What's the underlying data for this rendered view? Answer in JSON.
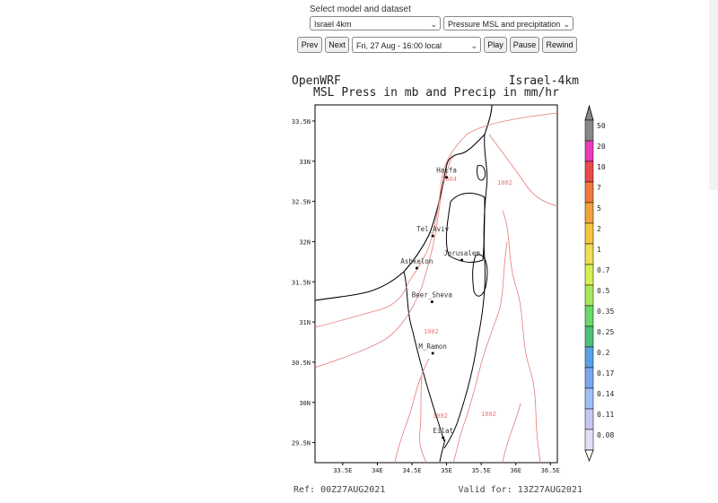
{
  "controls": {
    "select_label": "Select model and dataset",
    "model": "Israel 4km",
    "dataset": "Pressure MSL and precipitation",
    "time": "Fri, 27 Aug - 16:00 local",
    "prev_label": "Prev",
    "next_label": "Next",
    "play_label": "Play",
    "pause_label": "Pause",
    "rewind_label": "Rewind"
  },
  "chart": {
    "brand": "OpenWRF",
    "domain": "Israel-4km",
    "title": "MSL Press in mb and Precip in mm/hr",
    "ref": "Ref: 00Z27AUG2021",
    "valid": "Valid for: 13Z27AUG2021",
    "lat_ticks": [
      "33.5N",
      "33N",
      "32.5N",
      "32N",
      "31.5N",
      "31N",
      "30.5N",
      "30N",
      "29.5N"
    ],
    "lon_ticks": [
      "33.5E",
      "34E",
      "34.5E",
      "35E",
      "35.5E",
      "36E",
      "36.5E"
    ],
    "cities": [
      {
        "name": "Haifa",
        "lon": 35.0,
        "lat": 32.8
      },
      {
        "name": "Tel_Aviv",
        "lon": 34.8,
        "lat": 32.07
      },
      {
        "name": "Jerusalem",
        "lon": 35.22,
        "lat": 31.77
      },
      {
        "name": "Ashkelon",
        "lon": 34.57,
        "lat": 31.67
      },
      {
        "name": "Beer_Sheva",
        "lon": 34.79,
        "lat": 31.25
      },
      {
        "name": "M_Ramon",
        "lon": 34.8,
        "lat": 30.61
      },
      {
        "name": "Eilat",
        "lon": 34.95,
        "lat": 29.56
      }
    ],
    "isobar_labels": [
      "1004",
      "1002",
      "1002",
      "1002",
      "1002"
    ],
    "colorbar": {
      "levels": [
        "50",
        "20",
        "10",
        "7",
        "5",
        "2",
        "1",
        "0.7",
        "0.5",
        "0.35",
        "0.25",
        "0.2",
        "0.17",
        "0.14",
        "0.11",
        "0.08"
      ],
      "colors": [
        "#888888",
        "#e63cb8",
        "#e84b4b",
        "#ef7a3b",
        "#f2a23c",
        "#f5c542",
        "#eedd55",
        "#d8ee55",
        "#a8e860",
        "#6ad86a",
        "#4cc07a",
        "#5aa0e8",
        "#7aa8f0",
        "#9ec0f6",
        "#c6c6f2",
        "#e2defa"
      ]
    }
  }
}
